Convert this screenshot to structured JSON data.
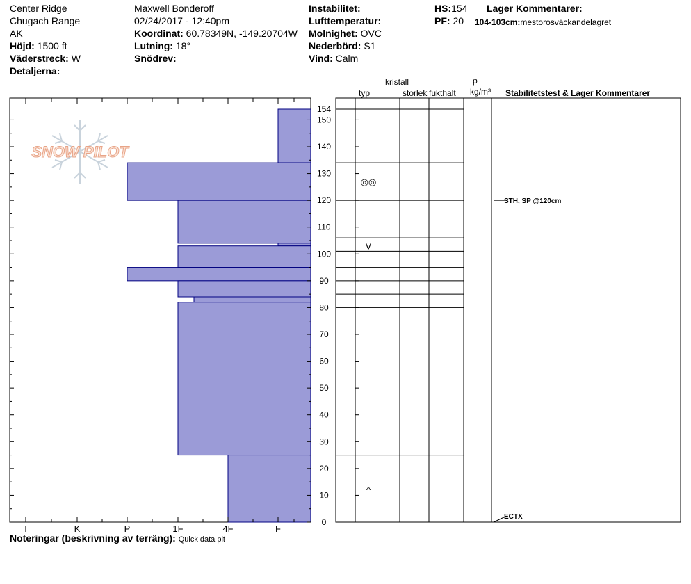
{
  "header": {
    "location": "Center Ridge",
    "range": "Chugach Range",
    "state": "AK",
    "elevation_label": "Höjd:",
    "elevation_value": "1500 ft",
    "aspect_label": "Väderstreck:",
    "aspect_value": "W",
    "details_label": "Detaljerna:",
    "observer": "Maxwell Bonderoff",
    "datetime": "02/24/2017 - 12:40pm",
    "coord_label": "Koordinat:",
    "coord_value": "60.78349N, -149.20704W",
    "slope_label": "Lutning:",
    "slope_value": "18°",
    "wind_loading_label": "Snödrev:",
    "instability_label": "Instabilitet:",
    "air_temp_label": "Lufttemperatur:",
    "sky_label": "Molnighet:",
    "sky_value": "OVC",
    "precip_label": "Nederbörd:",
    "precip_value": "S1",
    "wind_label": "Vind:",
    "wind_value": "Calm",
    "hs_label": "HS:",
    "hs_value": "154",
    "pf_label": "PF:",
    "pf_value": "20",
    "layer_comments_label": "Lager Kommentarer:",
    "layer_comment_range": "104-103cm:",
    "layer_comment_text": "mestorosväckandelagret"
  },
  "columns": {
    "crystal": "kristall",
    "type": "typ",
    "size": "storlek",
    "moisture": "fukthalt",
    "rho": "ρ",
    "density_unit": "kg/m³",
    "stability": "Stabilitetstest & Lager Kommentarer"
  },
  "footer": {
    "notes_label": "Noteringar (beskrivning av terräng):",
    "notes_value": "Quick data pit"
  },
  "logo_text": "SNOW PILOT",
  "colors": {
    "layer_fill": "#9b9bd7",
    "layer_stroke": "#000080"
  },
  "chart_data": {
    "type": "bar",
    "orientation": "horizontal",
    "y_axis": {
      "label": "",
      "min": 0,
      "max": 154,
      "ticks": [
        0,
        10,
        20,
        30,
        40,
        50,
        60,
        70,
        80,
        90,
        100,
        110,
        120,
        130,
        140,
        150
      ],
      "top_label": "154"
    },
    "x_axis": {
      "label": "",
      "categories": [
        "I",
        "K",
        "P",
        "1F",
        "4F",
        "F"
      ],
      "direction": "hardness increases to the left"
    },
    "hardness_layers": [
      {
        "top": 154,
        "bottom": 134,
        "hardness": "F"
      },
      {
        "top": 134,
        "bottom": 120,
        "hardness": "P"
      },
      {
        "top": 120,
        "bottom": 104,
        "hardness": "1F"
      },
      {
        "top": 104,
        "bottom": 103,
        "hardness": "F"
      },
      {
        "top": 103,
        "bottom": 95,
        "hardness": "1F"
      },
      {
        "top": 95,
        "bottom": 90,
        "hardness": "P"
      },
      {
        "top": 90,
        "bottom": 84,
        "hardness": "1F"
      },
      {
        "top": 84,
        "bottom": 82,
        "hardness": "1F-"
      },
      {
        "top": 82,
        "bottom": 25,
        "hardness": "1F"
      },
      {
        "top": 25,
        "bottom": 0,
        "hardness": "4F"
      }
    ],
    "layer_boundaries": [
      154,
      134,
      120,
      106,
      101,
      95,
      90,
      85,
      80,
      25
    ],
    "grain_types": [
      {
        "depth": 127,
        "symbol": "◎◎"
      },
      {
        "depth": 103,
        "symbol": "V"
      },
      {
        "depth": 12,
        "symbol": "^"
      }
    ],
    "stability_tests": [
      {
        "depth": 120,
        "label": "STH, SP @120cm"
      },
      {
        "depth": 0,
        "label": "ECTX"
      }
    ]
  }
}
